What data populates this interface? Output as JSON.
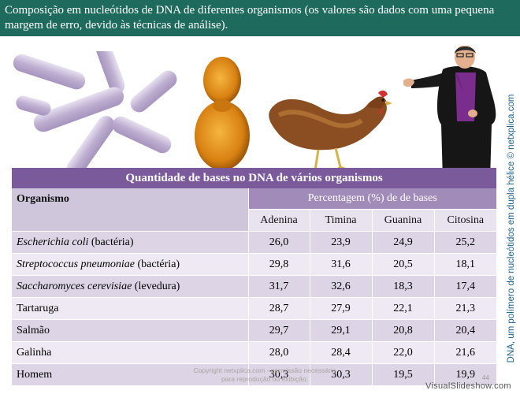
{
  "slide": {
    "title": "Composição em nucleótidos de DNA de diferentes organismos (os valores são dados com uma pequena margem de erro, devido às técnicas de análise)."
  },
  "images": {
    "bacteria": "bacteria-rods-illustration",
    "yeast": "budding-yeast-cell-illustration",
    "chicken": "chicken-photo",
    "presenter": "presenter-man-photo"
  },
  "side_caption": "DNA, um polímero de nucleótidos em dupla hélice © netxplica.com",
  "table": {
    "title": "Quantidade de bases no DNA de vários organismos",
    "col_organism": "Organismo",
    "col_percentage": "Percentagem (%) de de bases",
    "bases": [
      "Adenina",
      "Timina",
      "Guanina",
      "Citosina"
    ],
    "rows": [
      {
        "name": "Escherichia coli",
        "italic": true,
        "suffix": " (bactéria)",
        "values": [
          "26,0",
          "23,9",
          "24,9",
          "25,2"
        ]
      },
      {
        "name": "Streptococcus pneumoniae",
        "italic": true,
        "suffix": " (bactéria)",
        "values": [
          "29,8",
          "31,6",
          "20,5",
          "18,1"
        ]
      },
      {
        "name": "Saccharomyces cerevisiae",
        "italic": true,
        "suffix": " (levedura)",
        "values": [
          "31,7",
          "32,6",
          "18,3",
          "17,4"
        ]
      },
      {
        "name": "Tartaruga",
        "italic": false,
        "suffix": "",
        "values": [
          "28,7",
          "27,9",
          "22,1",
          "21,3"
        ]
      },
      {
        "name": "Salmão",
        "italic": false,
        "suffix": "",
        "values": [
          "29,7",
          "29,1",
          "20,8",
          "20,4"
        ]
      },
      {
        "name": "Galinha",
        "italic": false,
        "suffix": "",
        "values": [
          "28,0",
          "28,4",
          "22,0",
          "21,6"
        ]
      },
      {
        "name": "Homem",
        "italic": false,
        "suffix": "",
        "values": [
          "30,3",
          "30,3",
          "19,5",
          "19,9"
        ]
      }
    ]
  },
  "footer": {
    "copyright": "Copyright netxplica.com - permissão necessária para reprodução ou exibição.",
    "page_number": "44",
    "watermark": "VisualSlideshow.com"
  },
  "colors": {
    "header": "#1e6a5c",
    "table_title": "#7b5a9c",
    "table_accent": "#a08bb9",
    "row_odd": "#ddd5e6",
    "row_even": "#eee9f3"
  }
}
